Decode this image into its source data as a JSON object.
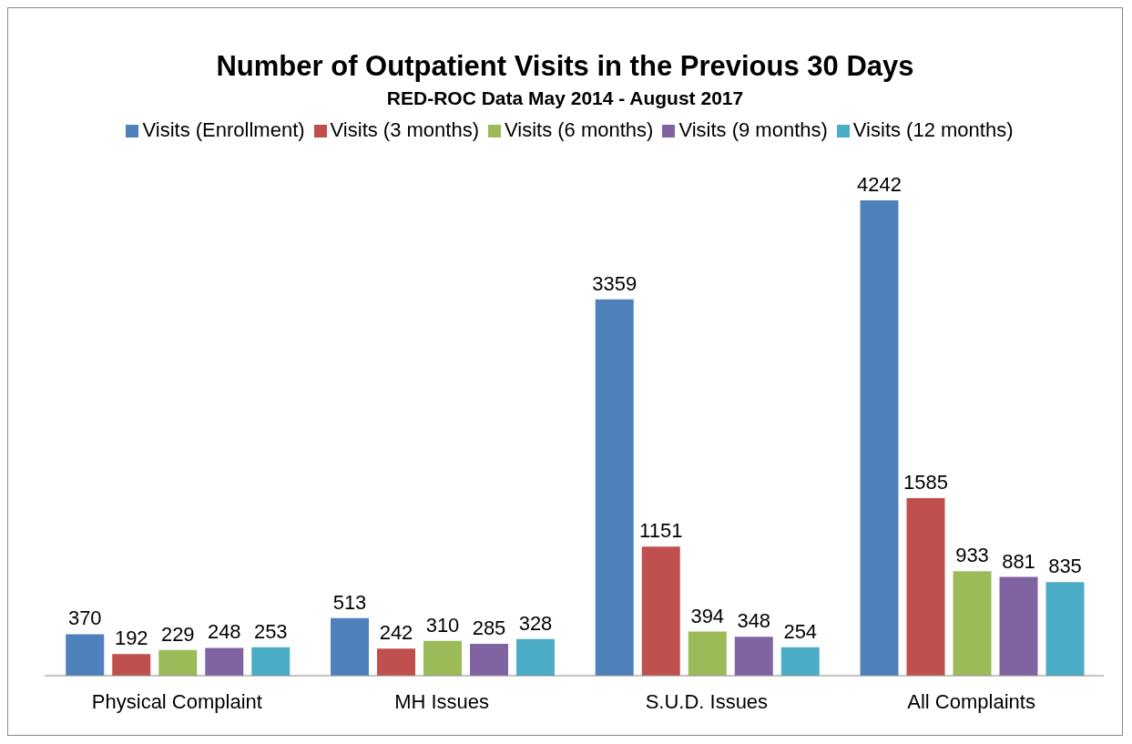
{
  "chart_data": {
    "type": "bar",
    "title": "Number of Outpatient Visits in the Previous 30 Days",
    "subtitle": "RED-ROC Data May 2014 - August 2017",
    "categories": [
      "Physical Complaint",
      "MH Issues",
      "S.U.D. Issues",
      "All Complaints"
    ],
    "series": [
      {
        "name": "Visits (Enrollment)",
        "color": "#4f81bd",
        "values": [
          370,
          513,
          3359,
          4242
        ]
      },
      {
        "name": "Visits (3 months)",
        "color": "#c0504d",
        "values": [
          192,
          242,
          1151,
          1585
        ]
      },
      {
        "name": "Visits (6 months)",
        "color": "#9bbb59",
        "values": [
          229,
          310,
          394,
          933
        ]
      },
      {
        "name": "Visits (9 months)",
        "color": "#8064a2",
        "values": [
          248,
          285,
          348,
          881
        ]
      },
      {
        "name": "Visits (12 months)",
        "color": "#4bacc6",
        "values": [
          253,
          328,
          254,
          835
        ]
      }
    ],
    "data_labels": true,
    "grid": false,
    "legend": "top"
  }
}
